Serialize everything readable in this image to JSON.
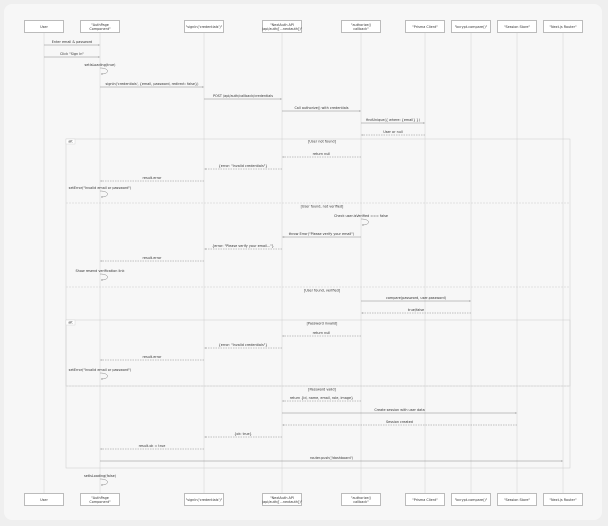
{
  "participants": [
    "User",
    "\"AuthPage Component\"",
    "\"signIn('credentials')\"",
    "\"NextAuth API (api/auth/[...nextauth])\"",
    "\"authorize() callback\"",
    "\"Prisma Client\"",
    "\"bcrypt.compare()\"",
    "\"Session Store\"",
    "\"Next.js Router\""
  ],
  "messages": [
    "Enter email & password",
    "Click \"Sign In\"",
    "setIsLoading(true)",
    "signIn('credentials', {email, password, redirect: false})",
    "POST /api/auth/callback/credentials",
    "Call authorize() with credentials",
    "findUnique({ where: {email} })",
    "User or null",
    "return null",
    "{error: \"Invalid credentials\"}",
    "result.error",
    "setError(\"Invalid email or password\")",
    "Check user.isVerified === false",
    "throw Error(\"Please verify your email\")",
    "{error: \"Please verify your email...\"}",
    "result.error",
    "Show resend verification link",
    "compare(password, user.password)",
    "true/false",
    "return null",
    "{error: \"Invalid credentials\"}",
    "result.error",
    "setError(\"Invalid email or password\")",
    "return {id, name, email, role, image}",
    "Create session with user data",
    "Session created",
    "{ok: true}",
    "result.ok = true",
    "router.push('/dashboard')",
    "setIsLoading(false)"
  ],
  "fragments": {
    "outer": "alt",
    "outer_sections": [
      "[User not found]",
      "[User found, not verified]",
      "[User found, verified]"
    ],
    "inner": "alt",
    "inner_sections": [
      "[Password invalid]",
      "[Password valid]"
    ]
  }
}
